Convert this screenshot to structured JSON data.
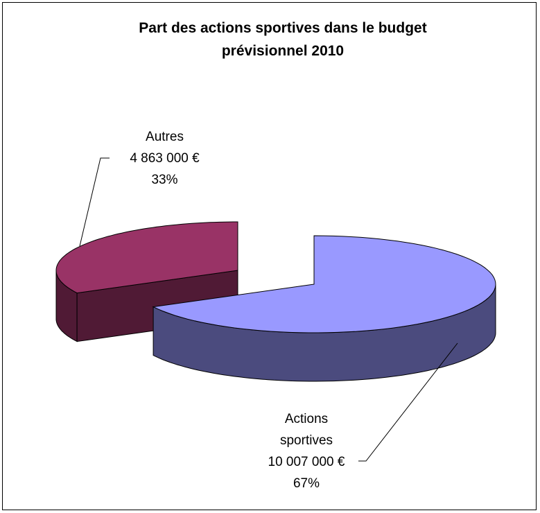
{
  "chart_data": {
    "type": "pie",
    "title": "Part des actions sportives dans le budget prévisionnel 2010",
    "categories": [
      "Autres",
      "Actions sportives"
    ],
    "values": [
      4863000,
      10007000
    ],
    "value_labels": [
      "4 863 000 €",
      "10 007 000 €"
    ],
    "percentages": [
      33,
      67
    ],
    "percentage_labels": [
      "33%",
      "67%"
    ],
    "colors": [
      "#993366",
      "#9999ff"
    ],
    "side_colors": [
      "#501a35",
      "#4b4b7e"
    ],
    "three_d": true,
    "exploded": true
  }
}
